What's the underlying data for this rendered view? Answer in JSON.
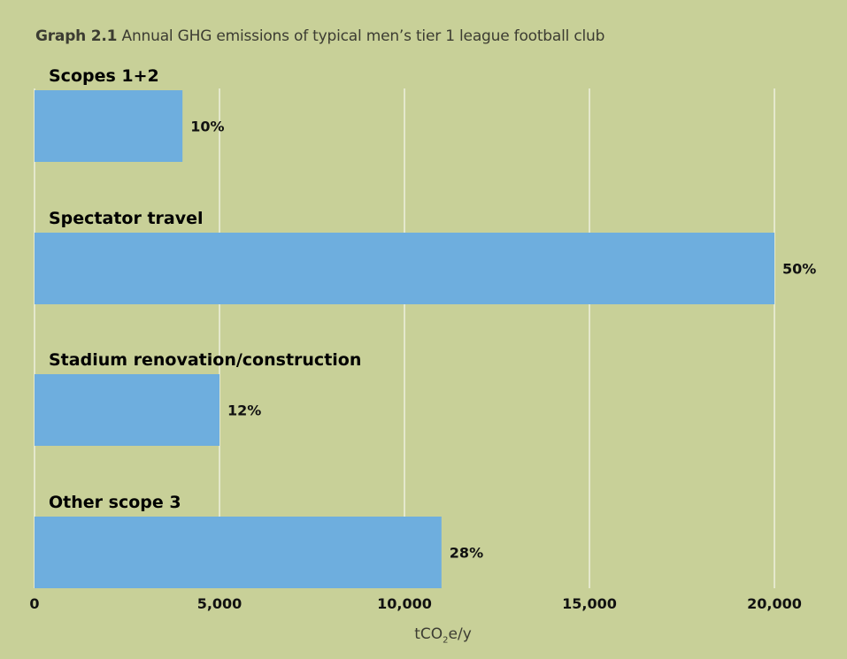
{
  "title": {
    "prefix": "Graph 2.1",
    "text": "Annual GHG emissions of typical men’s tier 1 league football club"
  },
  "chart_data": {
    "type": "bar",
    "orientation": "horizontal",
    "categories": [
      "Scopes 1+2",
      "Spectator travel",
      "Stadium renovation/construction",
      "Other scope 3"
    ],
    "values": [
      4000,
      20000,
      5000,
      11000
    ],
    "data_labels": [
      "10%",
      "50%",
      "12%",
      "28%"
    ],
    "xlim": [
      0,
      20000
    ],
    "xticks": [
      0,
      5000,
      10000,
      15000,
      20000
    ],
    "xtick_labels": [
      "0",
      "5,000",
      "10,000",
      "15,000",
      "20,000"
    ],
    "xlabel_parts": {
      "pre": "tCO",
      "sub": "2",
      "post": "e/y"
    },
    "grid": true,
    "bar_color": "#6eaede",
    "grid_color": "#ffffff",
    "background": "#c8d098"
  }
}
